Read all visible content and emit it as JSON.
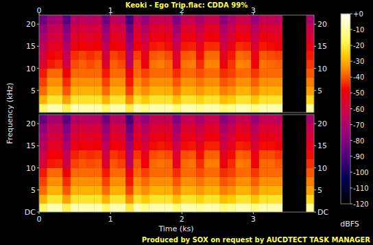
{
  "chart_data": {
    "type": "heatmap",
    "title": "Keoki - Ego Trip.flac: CDDA 99%",
    "footer": "Produced by SOX on request by AUCDTECT TASK MANAGER",
    "x_label": "Time (ks)",
    "y_label": "Frequency (kHz)",
    "xlim": [
      0,
      3.85
    ],
    "xticks": [
      0,
      1,
      2,
      3
    ],
    "ylim": [
      0,
      22.05
    ],
    "x_bins": [
      0,
      0.11,
      0.22,
      0.33,
      0.44,
      0.55,
      0.66,
      0.77,
      0.88,
      0.99,
      1.1,
      1.21,
      1.32,
      1.43,
      1.54,
      1.65,
      1.76,
      1.87,
      1.98,
      2.09,
      2.2,
      2.31,
      2.42,
      2.53,
      2.64,
      2.75,
      2.86,
      2.97,
      3.08,
      3.19,
      3.3,
      3.41,
      3.52,
      3.63,
      3.74,
      3.85
    ],
    "y_bins": [
      0,
      2.0045,
      4.009,
      6.0135,
      8.018,
      10.0225,
      12.027,
      14.0315,
      16.036,
      18.0405,
      20.045,
      22.05
    ],
    "panels": [
      {
        "yticks": [
          5,
          10,
          15,
          20
        ],
        "values": [
          [
            -16,
            -8,
            -8,
            -18,
            -8,
            -8,
            -8,
            -8,
            -16,
            -8,
            -8,
            -20,
            -8,
            -12,
            -8,
            -8,
            -8,
            -14,
            -8,
            -8,
            -11,
            -8,
            -8,
            -14,
            -12,
            -8,
            -8,
            -13,
            -8,
            -8,
            -8,
            -120,
            -120,
            -120,
            -10
          ],
          [
            -30,
            -22,
            -22,
            -32,
            -22,
            -22,
            -22,
            -22,
            -30,
            -22,
            -22,
            -34,
            -22,
            -26,
            -22,
            -22,
            -22,
            -28,
            -22,
            -22,
            -25,
            -22,
            -22,
            -28,
            -26,
            -22,
            -22,
            -27,
            -22,
            -22,
            -22,
            -120,
            -120,
            -120,
            -24
          ],
          [
            -38,
            -30,
            -30,
            -40,
            -30,
            -30,
            -30,
            -30,
            -38,
            -30,
            -30,
            -42,
            -30,
            -34,
            -30,
            -30,
            -30,
            -36,
            -30,
            -30,
            -33,
            -30,
            -30,
            -36,
            -34,
            -30,
            -30,
            -35,
            -30,
            -30,
            -30,
            -120,
            -120,
            -120,
            -32
          ],
          [
            -42,
            -34,
            -34,
            -44,
            -34,
            -34,
            -34,
            -34,
            -42,
            -34,
            -34,
            -46,
            -34,
            -38,
            -34,
            -34,
            -34,
            -40,
            -34,
            -34,
            -37,
            -34,
            -34,
            -40,
            -38,
            -34,
            -34,
            -39,
            -34,
            -34,
            -34,
            -120,
            -120,
            -120,
            -36
          ],
          [
            -46,
            -38,
            -38,
            -48,
            -38,
            -38,
            -38,
            -38,
            -46,
            -38,
            -38,
            -50,
            -38,
            -42,
            -38,
            -38,
            -38,
            -44,
            -38,
            -38,
            -41,
            -38,
            -38,
            -44,
            -42,
            -38,
            -38,
            -43,
            -38,
            -38,
            -38,
            -120,
            -120,
            -120,
            -40
          ],
          [
            -57,
            -46,
            -44,
            -61,
            -41,
            -39,
            -41,
            -39,
            -57,
            -39,
            -41,
            -65,
            -39,
            -49,
            -37,
            -36,
            -38,
            -53,
            -37,
            -36,
            -44,
            -35,
            -35,
            -51,
            -43,
            -35,
            -36,
            -48,
            -37,
            -38,
            -39,
            -120,
            -120,
            -120,
            -43
          ],
          [
            -60,
            -49,
            -47,
            -64,
            -44,
            -42,
            -44,
            -42,
            -60,
            -42,
            -44,
            -68,
            -42,
            -52,
            -40,
            -39,
            -41,
            -56,
            -40,
            -39,
            -47,
            -38,
            -38,
            -54,
            -46,
            -38,
            -39,
            -51,
            -40,
            -41,
            -42,
            -120,
            -120,
            -120,
            -46
          ],
          [
            -66,
            -55,
            -53,
            -70,
            -50,
            -48,
            -50,
            -48,
            -66,
            -48,
            -50,
            -74,
            -48,
            -58,
            -46,
            -45,
            -47,
            -62,
            -46,
            -45,
            -53,
            -44,
            -44,
            -60,
            -52,
            -44,
            -45,
            -57,
            -46,
            -47,
            -48,
            -120,
            -120,
            -120,
            -52
          ],
          [
            -71,
            -60,
            -58,
            -75,
            -55,
            -53,
            -55,
            -53,
            -71,
            -53,
            -55,
            -79,
            -53,
            -63,
            -51,
            -50,
            -52,
            -67,
            -51,
            -50,
            -58,
            -49,
            -49,
            -65,
            -57,
            -49,
            -50,
            -62,
            -51,
            -52,
            -53,
            -120,
            -120,
            -120,
            -57
          ],
          [
            -76,
            -65,
            -63,
            -80,
            -60,
            -58,
            -60,
            -58,
            -76,
            -58,
            -60,
            -84,
            -58,
            -68,
            -56,
            -55,
            -57,
            -72,
            -56,
            -55,
            -63,
            -54,
            -54,
            -70,
            -62,
            -54,
            -55,
            -67,
            -56,
            -57,
            -58,
            -120,
            -120,
            -120,
            -62
          ],
          [
            -84,
            -73,
            -71,
            -88,
            -68,
            -66,
            -68,
            -66,
            -84,
            -66,
            -68,
            -92,
            -66,
            -76,
            -64,
            -63,
            -65,
            -80,
            -64,
            -63,
            -71,
            -62,
            -62,
            -78,
            -70,
            -62,
            -63,
            -75,
            -64,
            -65,
            -66,
            -120,
            -120,
            -120,
            -70
          ]
        ]
      },
      {
        "yticks": [
          {
            "value": 0,
            "label": "DC"
          },
          5,
          10,
          15,
          20
        ],
        "values": [
          [
            -16,
            -8,
            -8,
            -18,
            -8,
            -8,
            -8,
            -8,
            -16,
            -8,
            -8,
            -20,
            -8,
            -12,
            -8,
            -8,
            -8,
            -14,
            -8,
            -8,
            -11,
            -8,
            -8,
            -14,
            -12,
            -8,
            -8,
            -13,
            -8,
            -8,
            -8,
            -120,
            -120,
            -120,
            -10
          ],
          [
            -30,
            -22,
            -22,
            -32,
            -22,
            -22,
            -22,
            -22,
            -30,
            -22,
            -22,
            -34,
            -22,
            -26,
            -22,
            -22,
            -22,
            -28,
            -22,
            -22,
            -25,
            -22,
            -22,
            -28,
            -26,
            -22,
            -22,
            -27,
            -22,
            -22,
            -22,
            -120,
            -120,
            -120,
            -24
          ],
          [
            -38,
            -30,
            -30,
            -40,
            -30,
            -30,
            -30,
            -30,
            -38,
            -30,
            -30,
            -42,
            -30,
            -34,
            -30,
            -30,
            -30,
            -36,
            -30,
            -30,
            -33,
            -30,
            -30,
            -36,
            -34,
            -30,
            -30,
            -35,
            -30,
            -30,
            -30,
            -120,
            -120,
            -120,
            -32
          ],
          [
            -42,
            -34,
            -34,
            -44,
            -34,
            -34,
            -34,
            -34,
            -42,
            -34,
            -34,
            -46,
            -34,
            -38,
            -34,
            -34,
            -34,
            -40,
            -34,
            -34,
            -37,
            -34,
            -34,
            -40,
            -38,
            -34,
            -34,
            -39,
            -34,
            -34,
            -34,
            -120,
            -120,
            -120,
            -36
          ],
          [
            -46,
            -38,
            -38,
            -48,
            -38,
            -38,
            -38,
            -38,
            -46,
            -38,
            -38,
            -50,
            -38,
            -42,
            -38,
            -38,
            -38,
            -44,
            -38,
            -38,
            -41,
            -38,
            -38,
            -44,
            -42,
            -38,
            -38,
            -43,
            -38,
            -38,
            -38,
            -120,
            -120,
            -120,
            -40
          ],
          [
            -58,
            -46,
            -45,
            -61,
            -42,
            -40,
            -41,
            -40,
            -57,
            -40,
            -42,
            -65,
            -40,
            -49,
            -38,
            -37,
            -38,
            -53,
            -38,
            -37,
            -44,
            -36,
            -36,
            -51,
            -44,
            -36,
            -37,
            -48,
            -38,
            -38,
            -40,
            -120,
            -120,
            -120,
            -44
          ],
          [
            -61,
            -49,
            -48,
            -64,
            -45,
            -43,
            -44,
            -43,
            -60,
            -43,
            -45,
            -68,
            -43,
            -52,
            -41,
            -40,
            -41,
            -56,
            -41,
            -40,
            -47,
            -39,
            -39,
            -54,
            -47,
            -39,
            -40,
            -51,
            -41,
            -41,
            -43,
            -120,
            -120,
            -120,
            -47
          ],
          [
            -67,
            -55,
            -54,
            -70,
            -51,
            -49,
            -50,
            -49,
            -66,
            -49,
            -51,
            -74,
            -49,
            -58,
            -47,
            -46,
            -47,
            -62,
            -47,
            -46,
            -53,
            -45,
            -45,
            -60,
            -53,
            -45,
            -46,
            -57,
            -47,
            -47,
            -49,
            -120,
            -120,
            -120,
            -53
          ],
          [
            -72,
            -60,
            -59,
            -75,
            -56,
            -54,
            -55,
            -54,
            -71,
            -54,
            -56,
            -79,
            -54,
            -63,
            -52,
            -51,
            -52,
            -67,
            -52,
            -51,
            -58,
            -50,
            -50,
            -65,
            -58,
            -50,
            -51,
            -62,
            -52,
            -52,
            -54,
            -120,
            -120,
            -120,
            -58
          ],
          [
            -77,
            -65,
            -64,
            -80,
            -61,
            -59,
            -60,
            -59,
            -76,
            -59,
            -61,
            -84,
            -59,
            -68,
            -57,
            -56,
            -57,
            -72,
            -57,
            -56,
            -63,
            -55,
            -55,
            -70,
            -63,
            -55,
            -56,
            -67,
            -57,
            -57,
            -59,
            -120,
            -120,
            -120,
            -63
          ],
          [
            -85,
            -73,
            -72,
            -88,
            -69,
            -67,
            -68,
            -67,
            -84,
            -67,
            -69,
            -92,
            -67,
            -76,
            -65,
            -64,
            -65,
            -80,
            -65,
            -64,
            -71,
            -63,
            -63,
            -78,
            -71,
            -63,
            -64,
            -75,
            -65,
            -65,
            -67,
            -120,
            -120,
            -120,
            -71
          ]
        ]
      }
    ],
    "colorbar": {
      "label": "dBFS",
      "range": [
        -120,
        0
      ],
      "ticks": [
        {
          "value": 0,
          "label": "+0"
        },
        -10,
        -20,
        -30,
        -40,
        -50,
        -60,
        -70,
        -80,
        -90,
        -100,
        -110,
        -120
      ]
    }
  }
}
